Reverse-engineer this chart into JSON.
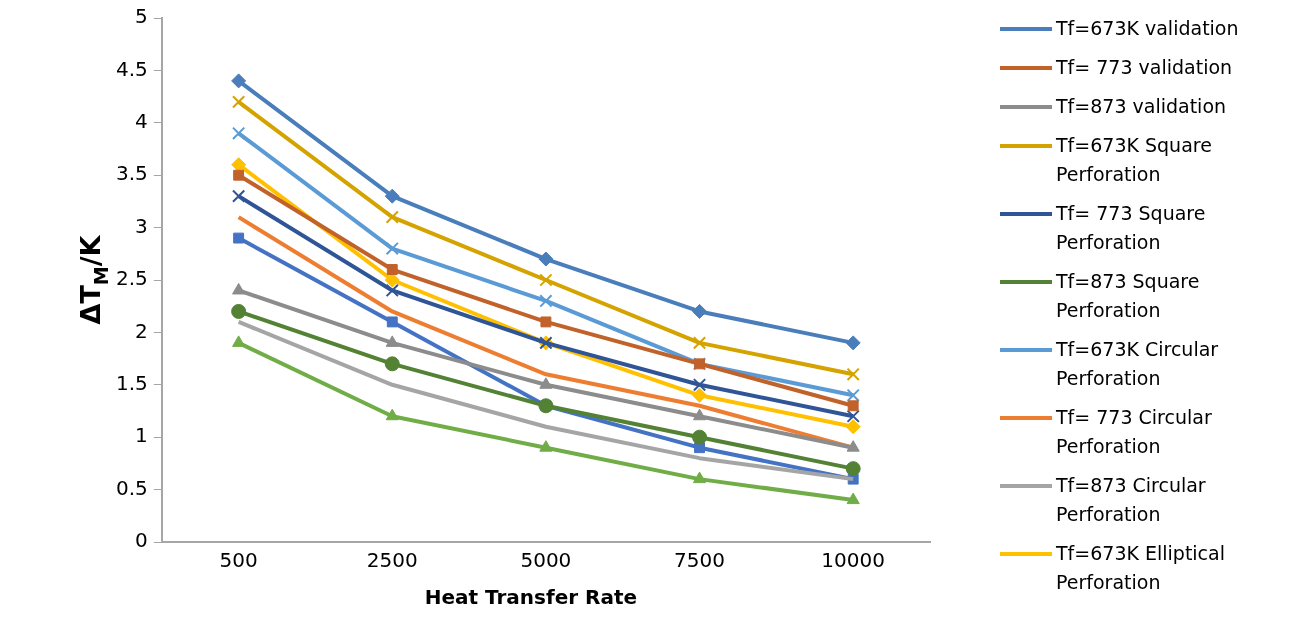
{
  "chart_data": {
    "type": "line",
    "xlabel": "Heat Transfer Rate",
    "ylabel": "ΔT$_{M}$/K",
    "categories": [
      "500",
      "2500",
      "5000",
      "7500",
      "10000"
    ],
    "ylim": [
      0,
      5
    ],
    "yticks": [
      0,
      0.5,
      1,
      1.5,
      2,
      2.5,
      3,
      3.5,
      4,
      4.5,
      5
    ],
    "grid": false,
    "legend": "right",
    "line_style": "solid",
    "series": [
      {
        "name": "Tf=673K validation",
        "color": "#4a7ebb",
        "marker": "diamond",
        "values": [
          4.4,
          3.3,
          2.7,
          2.2,
          1.9
        ]
      },
      {
        "name": "Tf= 773 validation",
        "color": "#c0622a",
        "marker": "square",
        "values": [
          3.5,
          2.6,
          2.1,
          1.7,
          1.3
        ]
      },
      {
        "name": "Tf=873 validation",
        "color": "#8c8c8c",
        "marker": "triangle",
        "values": [
          2.4,
          1.9,
          1.5,
          1.2,
          0.9
        ]
      },
      {
        "name": "Tf=673K Square Perforation",
        "color": "#d4a300",
        "marker": "cross",
        "values": [
          4.2,
          3.1,
          2.5,
          1.9,
          1.6
        ]
      },
      {
        "name": "Tf= 773 Square Perforation",
        "color": "#2f5597",
        "marker": "cross",
        "values": [
          3.3,
          2.4,
          1.9,
          1.5,
          1.2
        ]
      },
      {
        "name": "Tf=873 Square Perforation",
        "color": "#548235",
        "marker": "circle",
        "values": [
          2.2,
          1.7,
          1.3,
          1.0,
          0.7
        ]
      },
      {
        "name": "Tf=673K Circular Perforation",
        "color": "#5b9bd5",
        "marker": "cross",
        "values": [
          3.9,
          2.8,
          2.3,
          1.7,
          1.4
        ]
      },
      {
        "name": "Tf= 773 Circular Perforation",
        "color": "#ed7d31",
        "marker": "none",
        "values": [
          3.1,
          2.2,
          1.6,
          1.3,
          0.9
        ]
      },
      {
        "name": "Tf=873 Circular Perforation",
        "color": "#a5a5a5",
        "marker": "none",
        "values": [
          2.1,
          1.5,
          1.1,
          0.8,
          0.6
        ]
      },
      {
        "name": "Tf=673K Elliptical Perforation",
        "color": "#ffc000",
        "marker": "diamond",
        "values": [
          3.6,
          2.5,
          1.9,
          1.4,
          1.1
        ]
      },
      {
        "color": "#4472c4",
        "marker": "square",
        "values": [
          2.9,
          2.1,
          1.3,
          0.9,
          0.6
        ]
      },
      {
        "color": "#70ad47",
        "marker": "triangle",
        "values": [
          1.9,
          1.2,
          0.9,
          0.6,
          0.4
        ]
      }
    ]
  }
}
